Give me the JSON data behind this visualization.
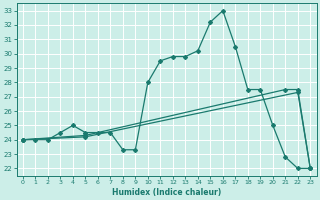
{
  "xlabel": "Humidex (Indice chaleur)",
  "bg_color": "#cceee8",
  "grid_color": "#ffffff",
  "line_color": "#1a7a6e",
  "xlim": [
    -0.5,
    23.5
  ],
  "ylim": [
    21.5,
    33.5
  ],
  "yticks": [
    22,
    23,
    24,
    25,
    26,
    27,
    28,
    29,
    30,
    31,
    32,
    33
  ],
  "xticks": [
    0,
    1,
    2,
    3,
    4,
    5,
    6,
    7,
    8,
    9,
    10,
    11,
    12,
    13,
    14,
    15,
    16,
    17,
    18,
    19,
    20,
    21,
    22,
    23
  ],
  "series1_x": [
    0,
    1,
    2,
    3,
    4,
    5,
    6,
    7,
    8,
    9,
    10,
    11,
    12,
    13,
    14,
    15,
    16,
    17,
    18,
    19,
    20,
    21,
    22,
    23
  ],
  "series1_y": [
    24.0,
    24.0,
    24.0,
    24.5,
    25.0,
    24.5,
    24.5,
    24.5,
    23.3,
    23.3,
    28.0,
    29.5,
    29.8,
    29.8,
    30.2,
    32.2,
    33.0,
    30.5,
    27.5,
    27.5,
    25.0,
    22.8,
    22.0,
    22.0
  ],
  "series2_x": [
    0,
    5,
    22,
    23
  ],
  "series2_y": [
    24.0,
    24.2,
    27.3,
    22.0
  ],
  "series3_x": [
    0,
    5,
    21,
    22,
    23
  ],
  "series3_y": [
    24.0,
    24.3,
    27.5,
    27.5,
    22.0
  ]
}
